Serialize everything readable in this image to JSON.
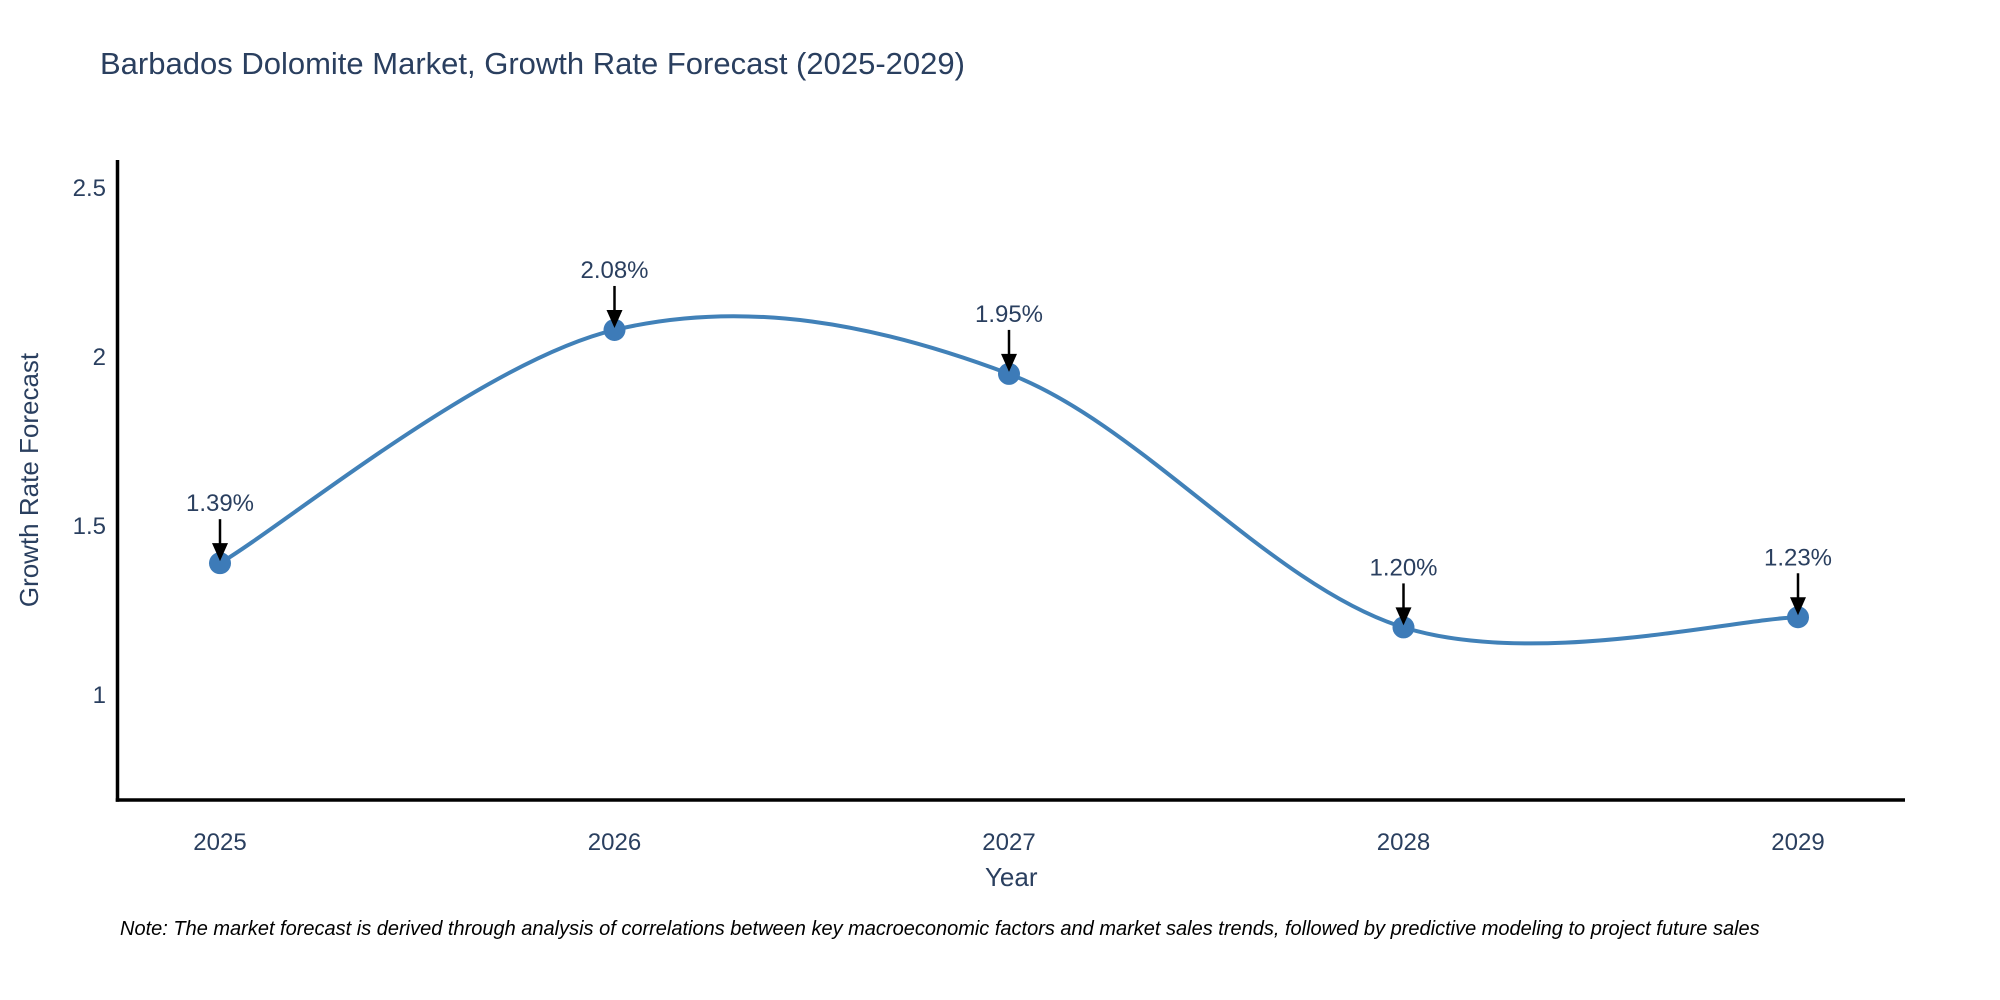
{
  "title": "Barbados Dolomite Market, Growth Rate Forecast (2025-2029)",
  "note": "Note: The market forecast is derived through analysis of correlations between key macroeconomic factors and market sales trends, followed by predictive modeling to project future sales",
  "chart_data": {
    "type": "line",
    "x": [
      2025,
      2026,
      2027,
      2028,
      2029
    ],
    "xticklabels": [
      "2025",
      "2026",
      "2027",
      "2028",
      "2029"
    ],
    "series": [
      {
        "name": "Growth Rate Forecast",
        "values": [
          1.39,
          2.08,
          1.95,
          1.2,
          1.23
        ],
        "point_labels": [
          "1.39%",
          "2.08%",
          "1.95%",
          "1.20%",
          "1.23%"
        ]
      }
    ],
    "xlabel": "Year",
    "ylabel": "Growth Rate Forecast",
    "yticklabels": [
      "1",
      "1.5",
      "2",
      "2.5"
    ],
    "ytick_values": [
      1,
      1.5,
      2,
      2.5
    ],
    "ylim": [
      0.69,
      2.6
    ],
    "grid": false,
    "legend_position": "none",
    "smooth": true,
    "colors": {
      "line": "#4181b8",
      "marker": "#3d7bb8",
      "axis_line": "#000000",
      "tick_text": "#2a3f5f",
      "title_text": "#2a3f5f",
      "annotation_text": "#2a3f5f",
      "annotation_arrow": "#000000",
      "background": "#ffffff"
    }
  }
}
